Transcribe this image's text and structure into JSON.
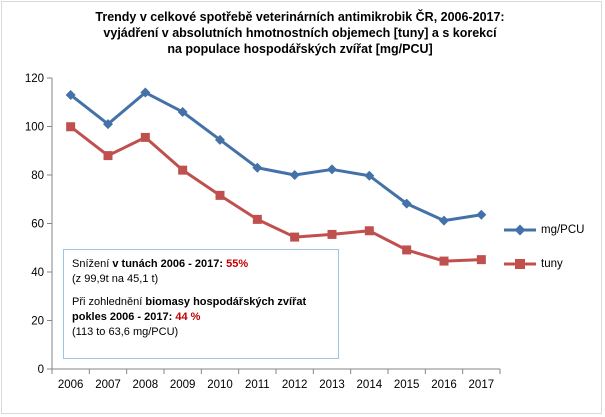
{
  "chart_data": {
    "type": "line",
    "title_lines": [
      "Trendy v celkové spotřebě veterinárních antimikrobik ČR, 2006-2017:",
      "vyjádření v absolutních hmotnostních objemech [tuny] a s korekcí",
      "na populace hospodářských zvířat [mg/PCU]"
    ],
    "x": [
      "2006",
      "2007",
      "2008",
      "2009",
      "2010",
      "2011",
      "2012",
      "2013",
      "2014",
      "2015",
      "2016",
      "2017"
    ],
    "ylim": [
      0,
      120
    ],
    "yticks": [
      0,
      20,
      40,
      60,
      80,
      100,
      120
    ],
    "grid": false,
    "legend_position": "right",
    "series": [
      {
        "name": "mg/PCU",
        "color": "#4472a8",
        "marker": "diamond",
        "values": [
          113,
          101,
          114,
          106,
          94.5,
          83,
          80,
          82.3,
          79.7,
          68.2,
          61.2,
          63.6
        ]
      },
      {
        "name": "tuny",
        "color": "#c0504d",
        "marker": "square",
        "values": [
          99.9,
          88,
          95.5,
          82,
          71.6,
          61.7,
          54.4,
          55.5,
          57,
          49.1,
          44.5,
          45.1
        ]
      }
    ]
  },
  "annotation": {
    "l1a": "Snížení ",
    "l1b": " v tunách 2006 - 2017: ",
    "l1c": "55%",
    "l2": "(z 99,9t na 45,1 t)",
    "l3a": "Při zohlednění ",
    "l3b": "biomasy hospodářských zvířat",
    "l4a": "pokles 2006 - 2017: ",
    "l4b": "44 %",
    "l5": "(113 to 63,6 mg/PCU)"
  }
}
